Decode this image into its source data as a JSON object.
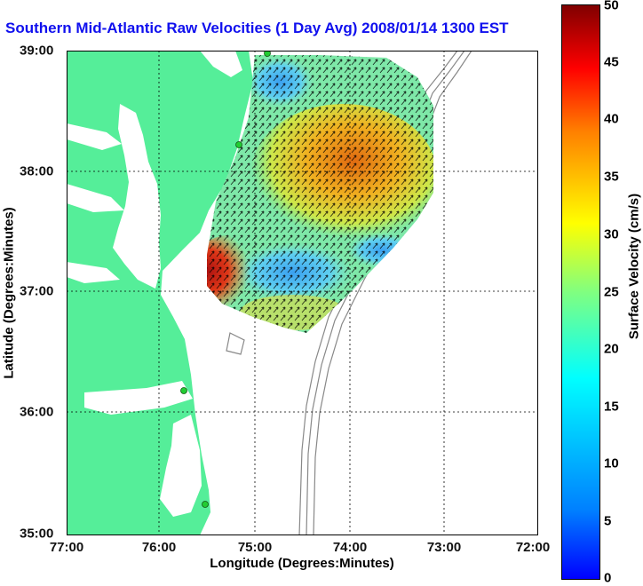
{
  "title": "Southern Mid-Atlantic Raw Velocities (1 Day Avg) 2008/01/14 1300 EST",
  "x_axis": {
    "label": "Longitude (Degrees:Minutes)",
    "ticks": [
      "77:00",
      "76:00",
      "75:00",
      "74:00",
      "73:00",
      "72:00"
    ],
    "range_deg_w": [
      77,
      72
    ]
  },
  "y_axis": {
    "label": "Latitude (Degrees:Minutes)",
    "ticks": [
      "39:00",
      "38:00",
      "37:00",
      "36:00",
      "35:00"
    ],
    "range_deg_n": [
      35,
      39
    ]
  },
  "colorbar": {
    "label": "Surface Velocity (cm/s)",
    "ticks": [
      "0",
      "5",
      "10",
      "15",
      "20",
      "25",
      "30",
      "35",
      "40",
      "45",
      "50"
    ],
    "range": [
      0,
      50
    ],
    "colormap": "jet"
  },
  "colors": {
    "land": "#55ee99",
    "grid": "#000000",
    "bathymetry": "#888888",
    "station": "#22cc33"
  },
  "map": {
    "grid": true,
    "arrows": "surface current vectors (black)"
  }
}
